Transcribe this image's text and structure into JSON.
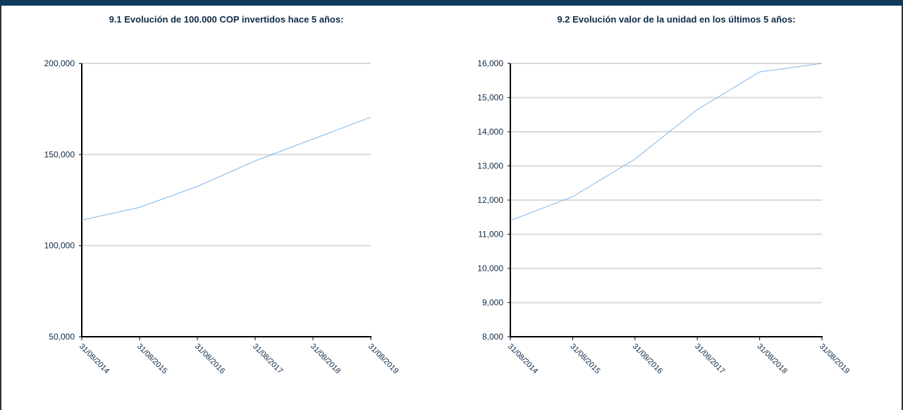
{
  "colors": {
    "header": "#0e3a5c",
    "line": "#7fb6e8",
    "grid": "#d9d9d9",
    "axis": "#000000",
    "text": "#0e2a47"
  },
  "chart_data": [
    {
      "type": "line",
      "title": "9.1 Evolución de 100.000 COP invertidos hace 5 años:",
      "xlabel": "",
      "ylabel": "",
      "x_ticks": [
        "31/08/2014",
        "31/08/2015",
        "31/08/2016",
        "31/08/2017",
        "31/08/2018",
        "31/08/2019"
      ],
      "y_ticks": [
        50000,
        100000,
        150000,
        200000
      ],
      "y_tick_labels": [
        "50,000",
        "100,000",
        "150,000",
        "200,000"
      ],
      "ylim": [
        50000,
        200000
      ],
      "grid": true,
      "series": [
        {
          "x": [
            "31/08/2014",
            "31/08/2015",
            "31/08/2016",
            "31/08/2017",
            "31/08/2018",
            "31/08/2019"
          ],
          "values": [
            114000,
            121000,
            132500,
            146500,
            158500,
            170500
          ]
        }
      ]
    },
    {
      "type": "line",
      "title": "9.2 Evolución valor de la unidad en los últimos 5 años:",
      "xlabel": "",
      "ylabel": "",
      "x_ticks": [
        "31/08/2014",
        "31/08/2015",
        "31/08/2016",
        "31/08/2017",
        "31/08/2018",
        "31/08/2019"
      ],
      "y_ticks": [
        8000,
        9000,
        10000,
        11000,
        12000,
        13000,
        14000,
        15000,
        16000
      ],
      "y_tick_labels": [
        "8,000",
        "9,000",
        "10,000",
        "11,000",
        "12,000",
        "13,000",
        "14,000",
        "15,000",
        "16,000"
      ],
      "ylim": [
        8000,
        16000
      ],
      "grid": true,
      "series": [
        {
          "x": [
            "31/08/2014",
            "31/08/2015",
            "31/08/2016",
            "31/08/2017",
            "31/08/2018",
            "31/08/2019"
          ],
          "values": [
            11400,
            12100,
            13200,
            14650,
            15750,
            16000
          ]
        }
      ]
    }
  ]
}
